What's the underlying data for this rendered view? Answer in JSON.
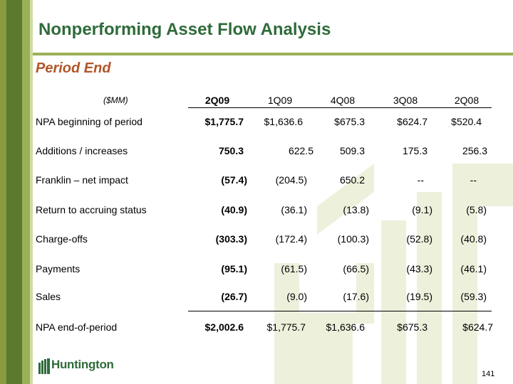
{
  "slide": {
    "title": "Nonperforming Asset Flow Analysis",
    "subtitle": "Period End",
    "page_number": "141",
    "logo_text": "Huntington"
  },
  "colors": {
    "title_green": "#2f6b3a",
    "subtitle_orange": "#b0562a",
    "bar_green": "#5c7a2e",
    "light_green": "#9bb056"
  },
  "table": {
    "unit_label": "($MM)",
    "columns": [
      "2Q09",
      "1Q09",
      "4Q08",
      "3Q08",
      "2Q08"
    ],
    "rows": [
      {
        "label": "NPA beginning of period",
        "values": [
          "$1,775.7",
          "$1,636.6",
          "$675.3",
          "$624.7",
          "$520.4"
        ]
      },
      {
        "label": "Additions / increases",
        "values": [
          "750.3",
          "622.5",
          "509.3",
          "175.3",
          "256.3"
        ]
      },
      {
        "label": "Franklin – net impact",
        "values": [
          "(57.4)",
          "(204.5)",
          "650.2",
          "--",
          "--"
        ]
      },
      {
        "label": "Return to accruing status",
        "values": [
          "(40.9)",
          "(36.1)",
          "(13.8)",
          "(9.1)",
          "(5.8)"
        ]
      },
      {
        "label": "Charge-offs",
        "values": [
          "(303.3)",
          "(172.4)",
          "(100.3)",
          "(52.8)",
          "(40.8)"
        ]
      },
      {
        "label": "Payments",
        "values": [
          "(95.1)",
          "(61.5)",
          "(66.5)",
          "(43.3)",
          "(46.1)"
        ]
      },
      {
        "label": "Sales",
        "values": [
          "(26.7)",
          "(9.0)",
          "(17.6)",
          "(19.5)",
          "(59.3)"
        ]
      },
      {
        "label": "NPA end-of-period",
        "values": [
          "$2,002.6",
          "$1,775.7",
          "$1,636.6",
          "$675.3",
          "$624.7"
        ]
      }
    ]
  }
}
